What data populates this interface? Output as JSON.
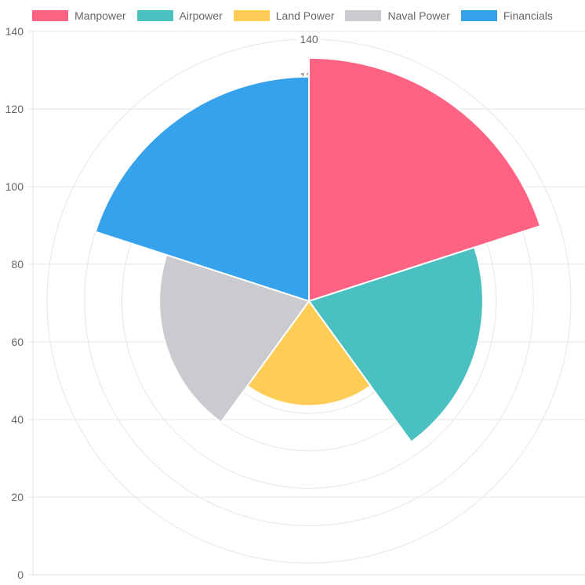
{
  "chart_data": {
    "type": "polarArea",
    "categories": [
      "Manpower",
      "Airpower",
      "Land Power",
      "Naval Power",
      "Financials"
    ],
    "values": [
      130,
      93,
      56,
      80,
      120
    ],
    "colors": [
      "#ff6384",
      "#4bc0c0",
      "#ffcd56",
      "#c9cbcf",
      "#36a2eb"
    ],
    "legend_position": "top",
    "r_ticks": [
      120,
      140
    ],
    "y_axis_ticks": [
      0,
      20,
      40,
      60,
      80,
      100,
      120,
      140
    ],
    "y_axis_range": [
      0,
      140
    ],
    "grid": true
  }
}
